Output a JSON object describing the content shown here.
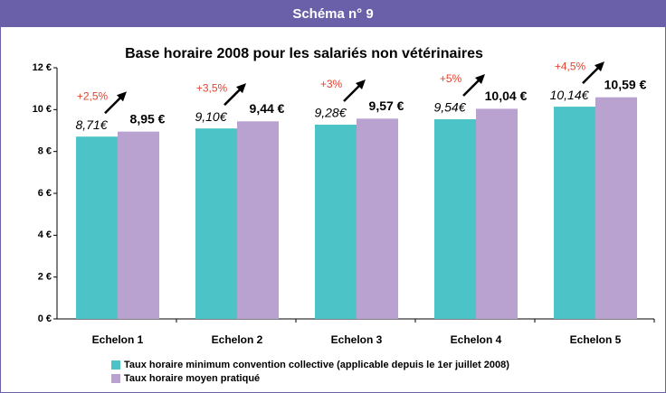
{
  "header": "Schéma n° 9",
  "chart_data": {
    "type": "bar",
    "title": "Base horaire 2008 pour les salariés non vétérinaires",
    "categories": [
      "Echelon 1",
      "Echelon 2",
      "Echelon 3",
      "Echelon 4",
      "Echelon 5"
    ],
    "series": [
      {
        "name": "Taux horaire minimum convention collective (applicable depuis le 1er juillet 2008)",
        "color": "#4cc3c6",
        "values": [
          8.71,
          9.1,
          9.28,
          9.54,
          10.14
        ],
        "value_labels": [
          "8,71€",
          "9,10€",
          "9,28€",
          "9,54€",
          "10,14€"
        ]
      },
      {
        "name": "Taux horaire moyen pratiqué",
        "color": "#b9a2d0",
        "values": [
          8.95,
          9.44,
          9.57,
          10.04,
          10.59
        ],
        "value_labels": [
          "8,95 €",
          "9,44 €",
          "9,57 €",
          "10,04 €",
          "10,59 €"
        ]
      }
    ],
    "annotations": [
      "+2,5%",
      "+3,5%",
      "+3%",
      "+5%",
      "+4,5%"
    ],
    "ylim": [
      0,
      12
    ],
    "yticks": [
      {
        "value": 0,
        "label": "0 €"
      },
      {
        "value": 2,
        "label": "2 €"
      },
      {
        "value": 4,
        "label": "4 €"
      },
      {
        "value": 6,
        "label": "6 €"
      },
      {
        "value": 8,
        "label": "8 €"
      },
      {
        "value": 10,
        "label": "10 €"
      },
      {
        "value": 12,
        "label": "12 €"
      }
    ],
    "grid": false,
    "legend": "bottom"
  }
}
